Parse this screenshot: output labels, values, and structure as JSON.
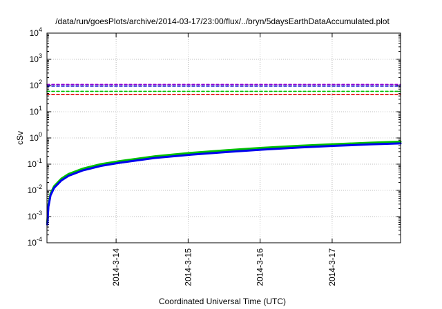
{
  "chart_data": {
    "type": "line",
    "title": "/data/run/goesPlots/archive/2014-03-17/23:00/flux/../bryn/5daysEarthDataAccumulated.plot",
    "xlabel": "Coordinated Universal Time (UTC)",
    "ylabel": "cSv",
    "y_scale": "log",
    "ylim": [
      0.0001,
      10000
    ],
    "xlim": [
      0,
      4.91
    ],
    "x_origin_note": "x measured in days from the left axis edge (2014-03-13 ~01:30 UTC)",
    "x_ticks": [
      {
        "x": 0.96,
        "label": "2014-3-14"
      },
      {
        "x": 1.96,
        "label": "2014-3-15"
      },
      {
        "x": 2.96,
        "label": "2014-3-16"
      },
      {
        "x": 3.96,
        "label": "2014-3-17"
      }
    ],
    "y_ticks": [
      {
        "base": "10",
        "exp": "-4",
        "value": 0.0001
      },
      {
        "base": "10",
        "exp": "-3",
        "value": 0.001
      },
      {
        "base": "10",
        "exp": "-2",
        "value": 0.01
      },
      {
        "base": "10",
        "exp": "-1",
        "value": 0.1
      },
      {
        "base": "10",
        "exp": "0",
        "value": 1
      },
      {
        "base": "10",
        "exp": "1",
        "value": 10
      },
      {
        "base": "10",
        "exp": "2",
        "value": 100
      },
      {
        "base": "10",
        "exp": "3",
        "value": 1000
      },
      {
        "base": "10",
        "exp": "4",
        "value": 10000
      }
    ],
    "grid": true,
    "legend": "none",
    "series": [
      {
        "style": "dashed",
        "color": "#9400d3",
        "x": [
          0,
          4.91
        ],
        "values": [
          110,
          110
        ]
      },
      {
        "style": "dashed",
        "color": "#0000cc",
        "x": [
          0,
          4.91
        ],
        "values": [
          95,
          95
        ]
      },
      {
        "style": "dashed",
        "color": "#00c000",
        "x": [
          0,
          4.91
        ],
        "values": [
          60,
          60
        ]
      },
      {
        "style": "dashed",
        "color": "#e00000",
        "x": [
          0,
          4.91
        ],
        "values": [
          45,
          45
        ]
      },
      {
        "style": "solid",
        "color": "#00c000",
        "x": [
          0.005,
          0.02,
          0.05,
          0.1,
          0.2,
          0.3,
          0.5,
          0.75,
          1.0,
          1.5,
          2.0,
          2.5,
          3.0,
          3.5,
          4.0,
          4.5,
          4.91
        ],
        "values": [
          0.0006,
          0.0028,
          0.0075,
          0.0145,
          0.028,
          0.042,
          0.068,
          0.1,
          0.13,
          0.2,
          0.27,
          0.34,
          0.42,
          0.5,
          0.58,
          0.66,
          0.72
        ]
      },
      {
        "style": "solid",
        "color": "#0000ee",
        "x": [
          0.005,
          0.02,
          0.05,
          0.1,
          0.2,
          0.3,
          0.5,
          0.75,
          1.0,
          1.5,
          2.0,
          2.5,
          3.0,
          3.5,
          4.0,
          4.5,
          4.91
        ],
        "values": [
          0.0005,
          0.0024,
          0.0065,
          0.0125,
          0.024,
          0.036,
          0.058,
          0.086,
          0.112,
          0.172,
          0.23,
          0.29,
          0.36,
          0.43,
          0.5,
          0.57,
          0.62
        ]
      }
    ]
  }
}
